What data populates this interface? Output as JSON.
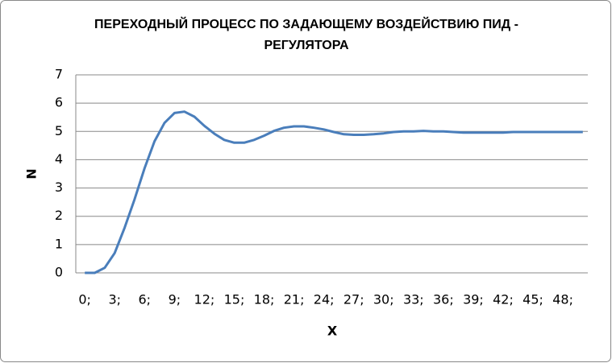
{
  "chart_data": {
    "type": "line",
    "title": "ПЕРЕХОДНЫЙ ПРОЦЕСС ПО ЗАДАЮЩЕМУ ВОЗДЕЙСТВИЮ ПИД - РЕГУЛЯТОРА",
    "x_label": "X",
    "y_label": "N",
    "categories": [
      "0;",
      null,
      null,
      "3;",
      null,
      null,
      "6;",
      null,
      null,
      "9;",
      null,
      null,
      "12;",
      null,
      null,
      "15;",
      null,
      null,
      "18;",
      null,
      null,
      "21;",
      null,
      null,
      "24;",
      null,
      null,
      "27;",
      null,
      null,
      "30;",
      null,
      null,
      "33;",
      null,
      null,
      "36;",
      null,
      null,
      "39;",
      null,
      null,
      "42;",
      null,
      null,
      "45;",
      null,
      null,
      "48;",
      null,
      null
    ],
    "values": [
      0,
      0,
      0.18,
      0.7,
      1.6,
      2.6,
      3.7,
      4.65,
      5.3,
      5.65,
      5.7,
      5.52,
      5.2,
      4.92,
      4.7,
      4.6,
      4.6,
      4.7,
      4.85,
      5.02,
      5.13,
      5.18,
      5.18,
      5.13,
      5.07,
      4.98,
      4.9,
      4.88,
      4.88,
      4.9,
      4.93,
      4.98,
      5.0,
      5.0,
      5.02,
      5.0,
      5.0,
      4.98,
      4.96,
      4.96,
      4.96,
      4.96,
      4.96,
      4.98,
      4.98,
      4.98,
      4.98,
      4.98,
      4.98,
      4.98,
      4.98
    ],
    "color": "#4a7ebb",
    "ylim": [
      0,
      7
    ],
    "yticks": [
      0,
      1,
      2,
      3,
      4,
      5,
      6,
      7
    ],
    "grid": true
  }
}
